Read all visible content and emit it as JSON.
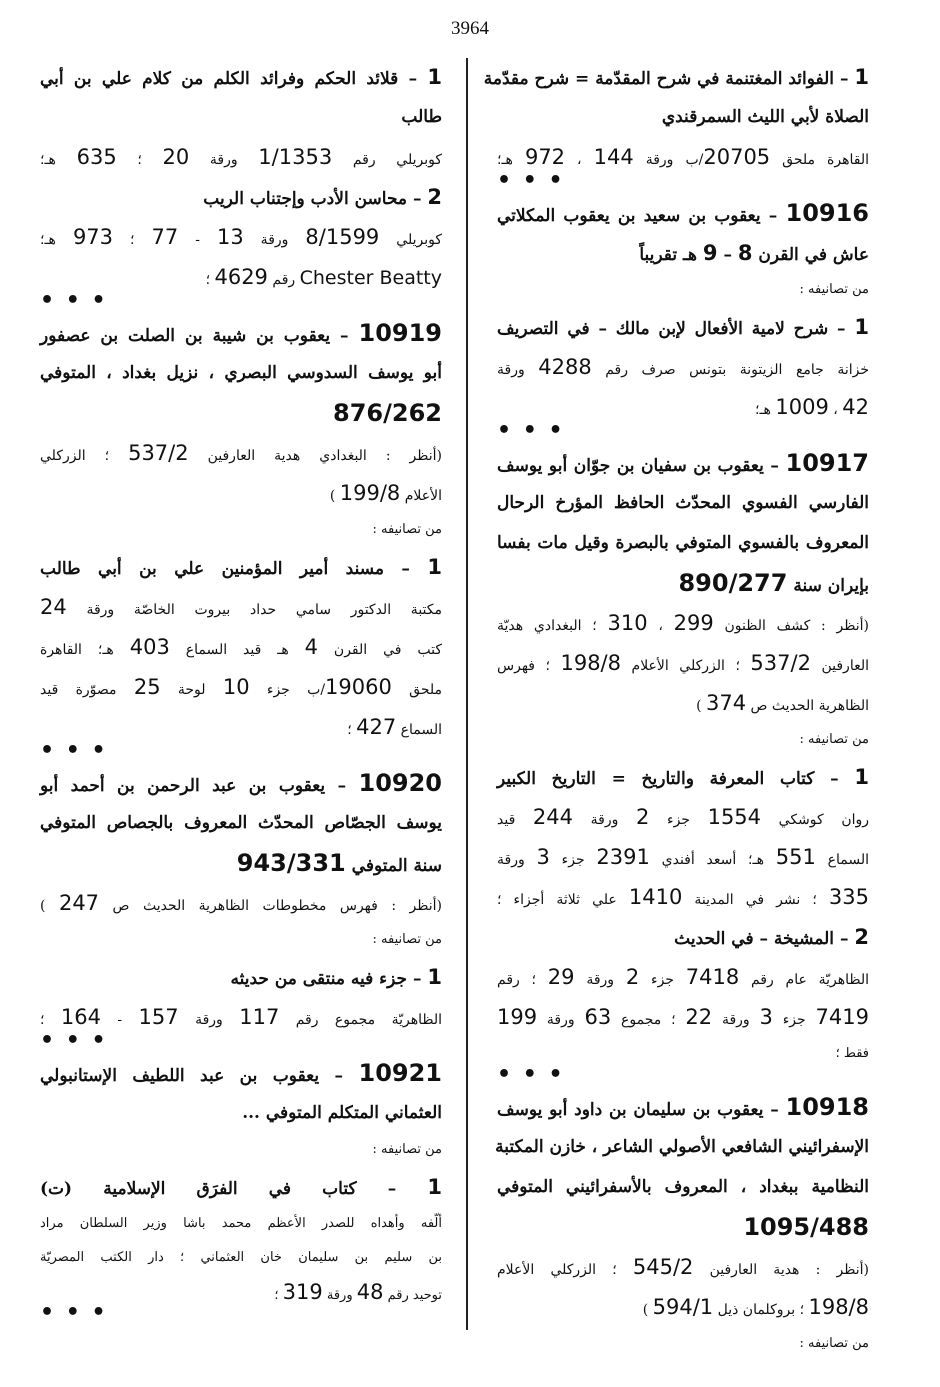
{
  "page_number": "3964",
  "separator": "• • •",
  "right_column": [
    {
      "k": "b",
      "t": "1 – الفوائد المغتنمة في شرح المقدّمة = شرح مقدّمة"
    },
    {
      "k": "b",
      "t": "الصلاة لأبي الليث السمرقندي"
    },
    {
      "k": "n",
      "t": "القاهرة ملحق 20705/ب ورقة 144 ، 972 هـ؛"
    },
    {
      "k": "dots"
    },
    {
      "k": "b",
      "t": "10916 – يعقوب بن سعيد بن يعقوب المكلاتي"
    },
    {
      "k": "b",
      "t": "عاش في القرن 8 – 9 هـ تقريباً"
    },
    {
      "k": "s",
      "t": "من تصانيفه :"
    },
    {
      "k": "b",
      "t": "1 – شرح لامية الأفعال لإبن مالك – في التصريف"
    },
    {
      "k": "n",
      "t": "خزانة جامع الزيتونة بتونس صرف رقم 4288 ورقة"
    },
    {
      "k": "n",
      "t": "42 ، 1009 هـ؛"
    },
    {
      "k": "dots"
    },
    {
      "k": "b",
      "t": "10917 – يعقوب بن سفيان بن جوّان أبو يوسف"
    },
    {
      "k": "b",
      "t": "الفارسي الفسوي المحدّث الحافظ المؤرخ الرحال"
    },
    {
      "k": "b",
      "t": "المعروف بالفسوي المتوفي  بالبصرة وقيل مات بفسا"
    },
    {
      "k": "b",
      "t": "بإيران سنة 890/277"
    },
    {
      "k": "n",
      "t": "(أنظر : كشف الظنون 299 ، 310 ؛ البغدادي هديّة"
    },
    {
      "k": "n",
      "t": "العارفين 537/2 ؛ الزركلي الأعلام 198/8 ؛ فهرس"
    },
    {
      "k": "n",
      "t": "الظاهرية الحديث ص 374 )"
    },
    {
      "k": "s",
      "t": "من تصانيفه :"
    },
    {
      "k": "b",
      "t": "1 – كتاب المعرفة والتاريخ = التاريخ الكبير"
    },
    {
      "k": "n",
      "t": "روان كوشكي 1554 جزء 2 ورقة 244 قيد"
    },
    {
      "k": "n",
      "t": "السماع 551 هـ؛ أسعد أفندي 2391 جزء 3 ورقة"
    },
    {
      "k": "n",
      "t": "335 ؛ نشر في المدينة 1410 علي ثلاثة أجزاء ؛"
    },
    {
      "k": "b",
      "t": "2 – المشيخة – في الحديث"
    },
    {
      "k": "n",
      "t": "الظاهريّة عام رقم 7418 جزء 2 ورقة 29 ؛ رقم"
    },
    {
      "k": "n",
      "t": "7419 جزء 3 ورقة 22 ؛ مجموع 63 ورقة 199"
    },
    {
      "k": "s",
      "t": "فقط ؛"
    },
    {
      "k": "dots"
    },
    {
      "k": "b",
      "t": "10918 – يعقوب بن سليمان بن داود أبو يوسف"
    },
    {
      "k": "b",
      "t": "الإسفرائيني الشافعي الأصولي الشاعر ، خازن المكتبة"
    },
    {
      "k": "b",
      "t": "النظامية ببغداد ، المعروف بالأسفرائيني المتوفي"
    },
    {
      "k": "b",
      "t": "1095/488"
    },
    {
      "k": "n",
      "t": "(أنظر : هدية العارفين 545/2 ؛ الزركلي الأعلام"
    },
    {
      "k": "n",
      "t": "198/8 ؛ بروكلمان ذيل 594/1 )"
    },
    {
      "k": "s",
      "t": "من تصانيفه :"
    }
  ],
  "left_column": [
    {
      "k": "b",
      "t": "1 – قلائد الحكم وفرائد الكلم من كلام علي بن أبي"
    },
    {
      "k": "b",
      "t": "طالب"
    },
    {
      "k": "n",
      "t": "كوبريلي رقم 1/1353 ورقة 20 ؛ 635 هـ؛"
    },
    {
      "k": "b",
      "t": "2 – محاسن الأدب وإجتناب الريب"
    },
    {
      "k": "n",
      "t": "كوبريلي 8/1599 ورقة 13 - 77 ؛ 973 هـ؛"
    },
    {
      "k": "n",
      "t": "Chester Beatty رقم 4629 ؛"
    },
    {
      "k": "dots"
    },
    {
      "k": "b",
      "t": "10919 – يعقوب بن شيبة بن الصلت بن عصفور"
    },
    {
      "k": "b",
      "t": "أبو يوسف السدوسي البصري ، نزيل بغداد ، المتوفي"
    },
    {
      "k": "b",
      "t": "876/262"
    },
    {
      "k": "n",
      "t": "(أنظر : البغدادي هدية العارفين 537/2 ؛ الزركلي"
    },
    {
      "k": "n",
      "t": "الأعلام 199/8 )"
    },
    {
      "k": "s",
      "t": "من تصانيفه :"
    },
    {
      "k": "b",
      "t": "1 – مسند أمير المؤمنين علي بن أبي طالب"
    },
    {
      "k": "n",
      "t": "مكتبة الدكتور سامي حداد بيروت الخاصّة ورقة 24"
    },
    {
      "k": "n",
      "t": "كتب في القرن 4 هـ قيد السماع 403 هـ؛ القاهرة"
    },
    {
      "k": "n",
      "t": "ملحق 19060/ب جزء 10 لوحة 25 مصوّرة قيد"
    },
    {
      "k": "n",
      "t": "السماع 427 ؛"
    },
    {
      "k": "dots"
    },
    {
      "k": "b",
      "t": "10920 – يعقوب بن عبد الرحمن بن أحمد أبو"
    },
    {
      "k": "b",
      "t": "يوسف الجصّاص المحدّث المعروف بالجصاص المتوفي"
    },
    {
      "k": "b",
      "t": "سنة المتوفي 943/331"
    },
    {
      "k": "n",
      "t": "(أنظر : فهرس مخطوطات الظاهرية الحديث ص 247 )"
    },
    {
      "k": "s",
      "t": "من تصانيفه :"
    },
    {
      "k": "b",
      "t": "1 – جزء فيه منتقى من حديثه"
    },
    {
      "k": "n",
      "t": "الظاهريّة مجموع رقم 117 ورقة 157 - 164 ؛"
    },
    {
      "k": "dots"
    },
    {
      "k": "b",
      "t": "10921 – يعقوب بن عبد اللطيف الإستانبولي"
    },
    {
      "k": "b",
      "t": "العثماني المتكلم المتوفي ..."
    },
    {
      "k": "s",
      "t": "من تصانيفه :"
    },
    {
      "k": "b",
      "t": "1 – كتاب في الفرَق الإسلامية (ت)"
    },
    {
      "k": "s",
      "t": "ألّفه وأهداه للصدر الأعظم محمد باشا وزير السلطان مراد"
    },
    {
      "k": "s",
      "t": "بن سليم بن سليمان خان العثماني ؛ دار الكتب المصريّة"
    },
    {
      "k": "s",
      "t": "توحيد رقم 48 ورقة 319 ؛"
    },
    {
      "k": "dots"
    }
  ]
}
